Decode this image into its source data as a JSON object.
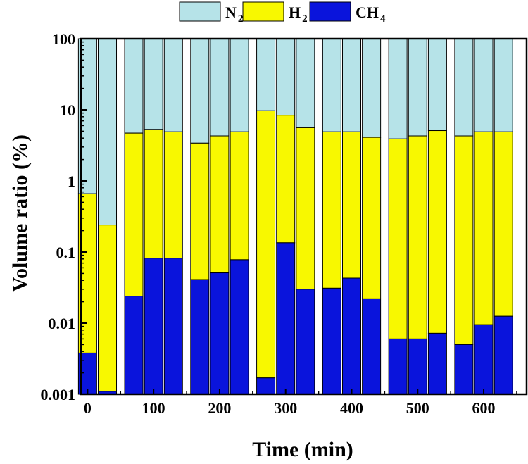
{
  "chart_data": {
    "type": "bar",
    "stacked": true,
    "ylog": true,
    "title": "",
    "xlabel": "Time (min)",
    "ylabel": "Volume ratio (%)",
    "ylim": [
      0.001,
      100
    ],
    "xlim": [
      -10,
      665
    ],
    "x": [
      0,
      30,
      70,
      100,
      130,
      170,
      200,
      230,
      270,
      300,
      330,
      370,
      400,
      430,
      470,
      500,
      530,
      570,
      600,
      630
    ],
    "xticks": [
      0,
      100,
      200,
      300,
      400,
      500,
      600
    ],
    "xtick_labels": [
      "0",
      "100",
      "200",
      "300",
      "400",
      "500",
      "600"
    ],
    "yticks": [
      0.001,
      0.01,
      0.1,
      1,
      10,
      100
    ],
    "ytick_labels": [
      "0.001",
      "0.01",
      "0.1",
      "1",
      "10",
      "100"
    ],
    "series": [
      {
        "name": "CH4",
        "label_main": "CH",
        "label_sub": "4",
        "color": "#0a14dc",
        "values": [
          0.0038,
          0.0011,
          0.024,
          0.082,
          0.082,
          0.041,
          0.051,
          0.078,
          0.0017,
          0.135,
          0.03,
          0.031,
          0.043,
          0.022,
          0.006,
          0.006,
          0.0072,
          0.005,
          0.0095,
          0.0125
        ]
      },
      {
        "name": "H2",
        "label_main": "H",
        "label_sub": "2",
        "color": "#f8f800",
        "values": [
          0.66,
          0.24,
          4.7,
          5.3,
          4.9,
          3.4,
          4.3,
          4.9,
          9.7,
          8.4,
          5.6,
          4.9,
          4.9,
          4.1,
          3.9,
          4.3,
          5.1,
          4.3,
          4.9,
          4.9
        ]
      },
      {
        "name": "N2",
        "label_main": "N",
        "label_sub": "2",
        "color": "#b6e3e8",
        "values": [
          100,
          100,
          100,
          100,
          100,
          100,
          100,
          100,
          100,
          100,
          100,
          100,
          100,
          100,
          100,
          100,
          100,
          100,
          100,
          100
        ]
      }
    ],
    "legend_order": [
      "N2",
      "H2",
      "CH4"
    ],
    "legend_position": "top-center"
  }
}
